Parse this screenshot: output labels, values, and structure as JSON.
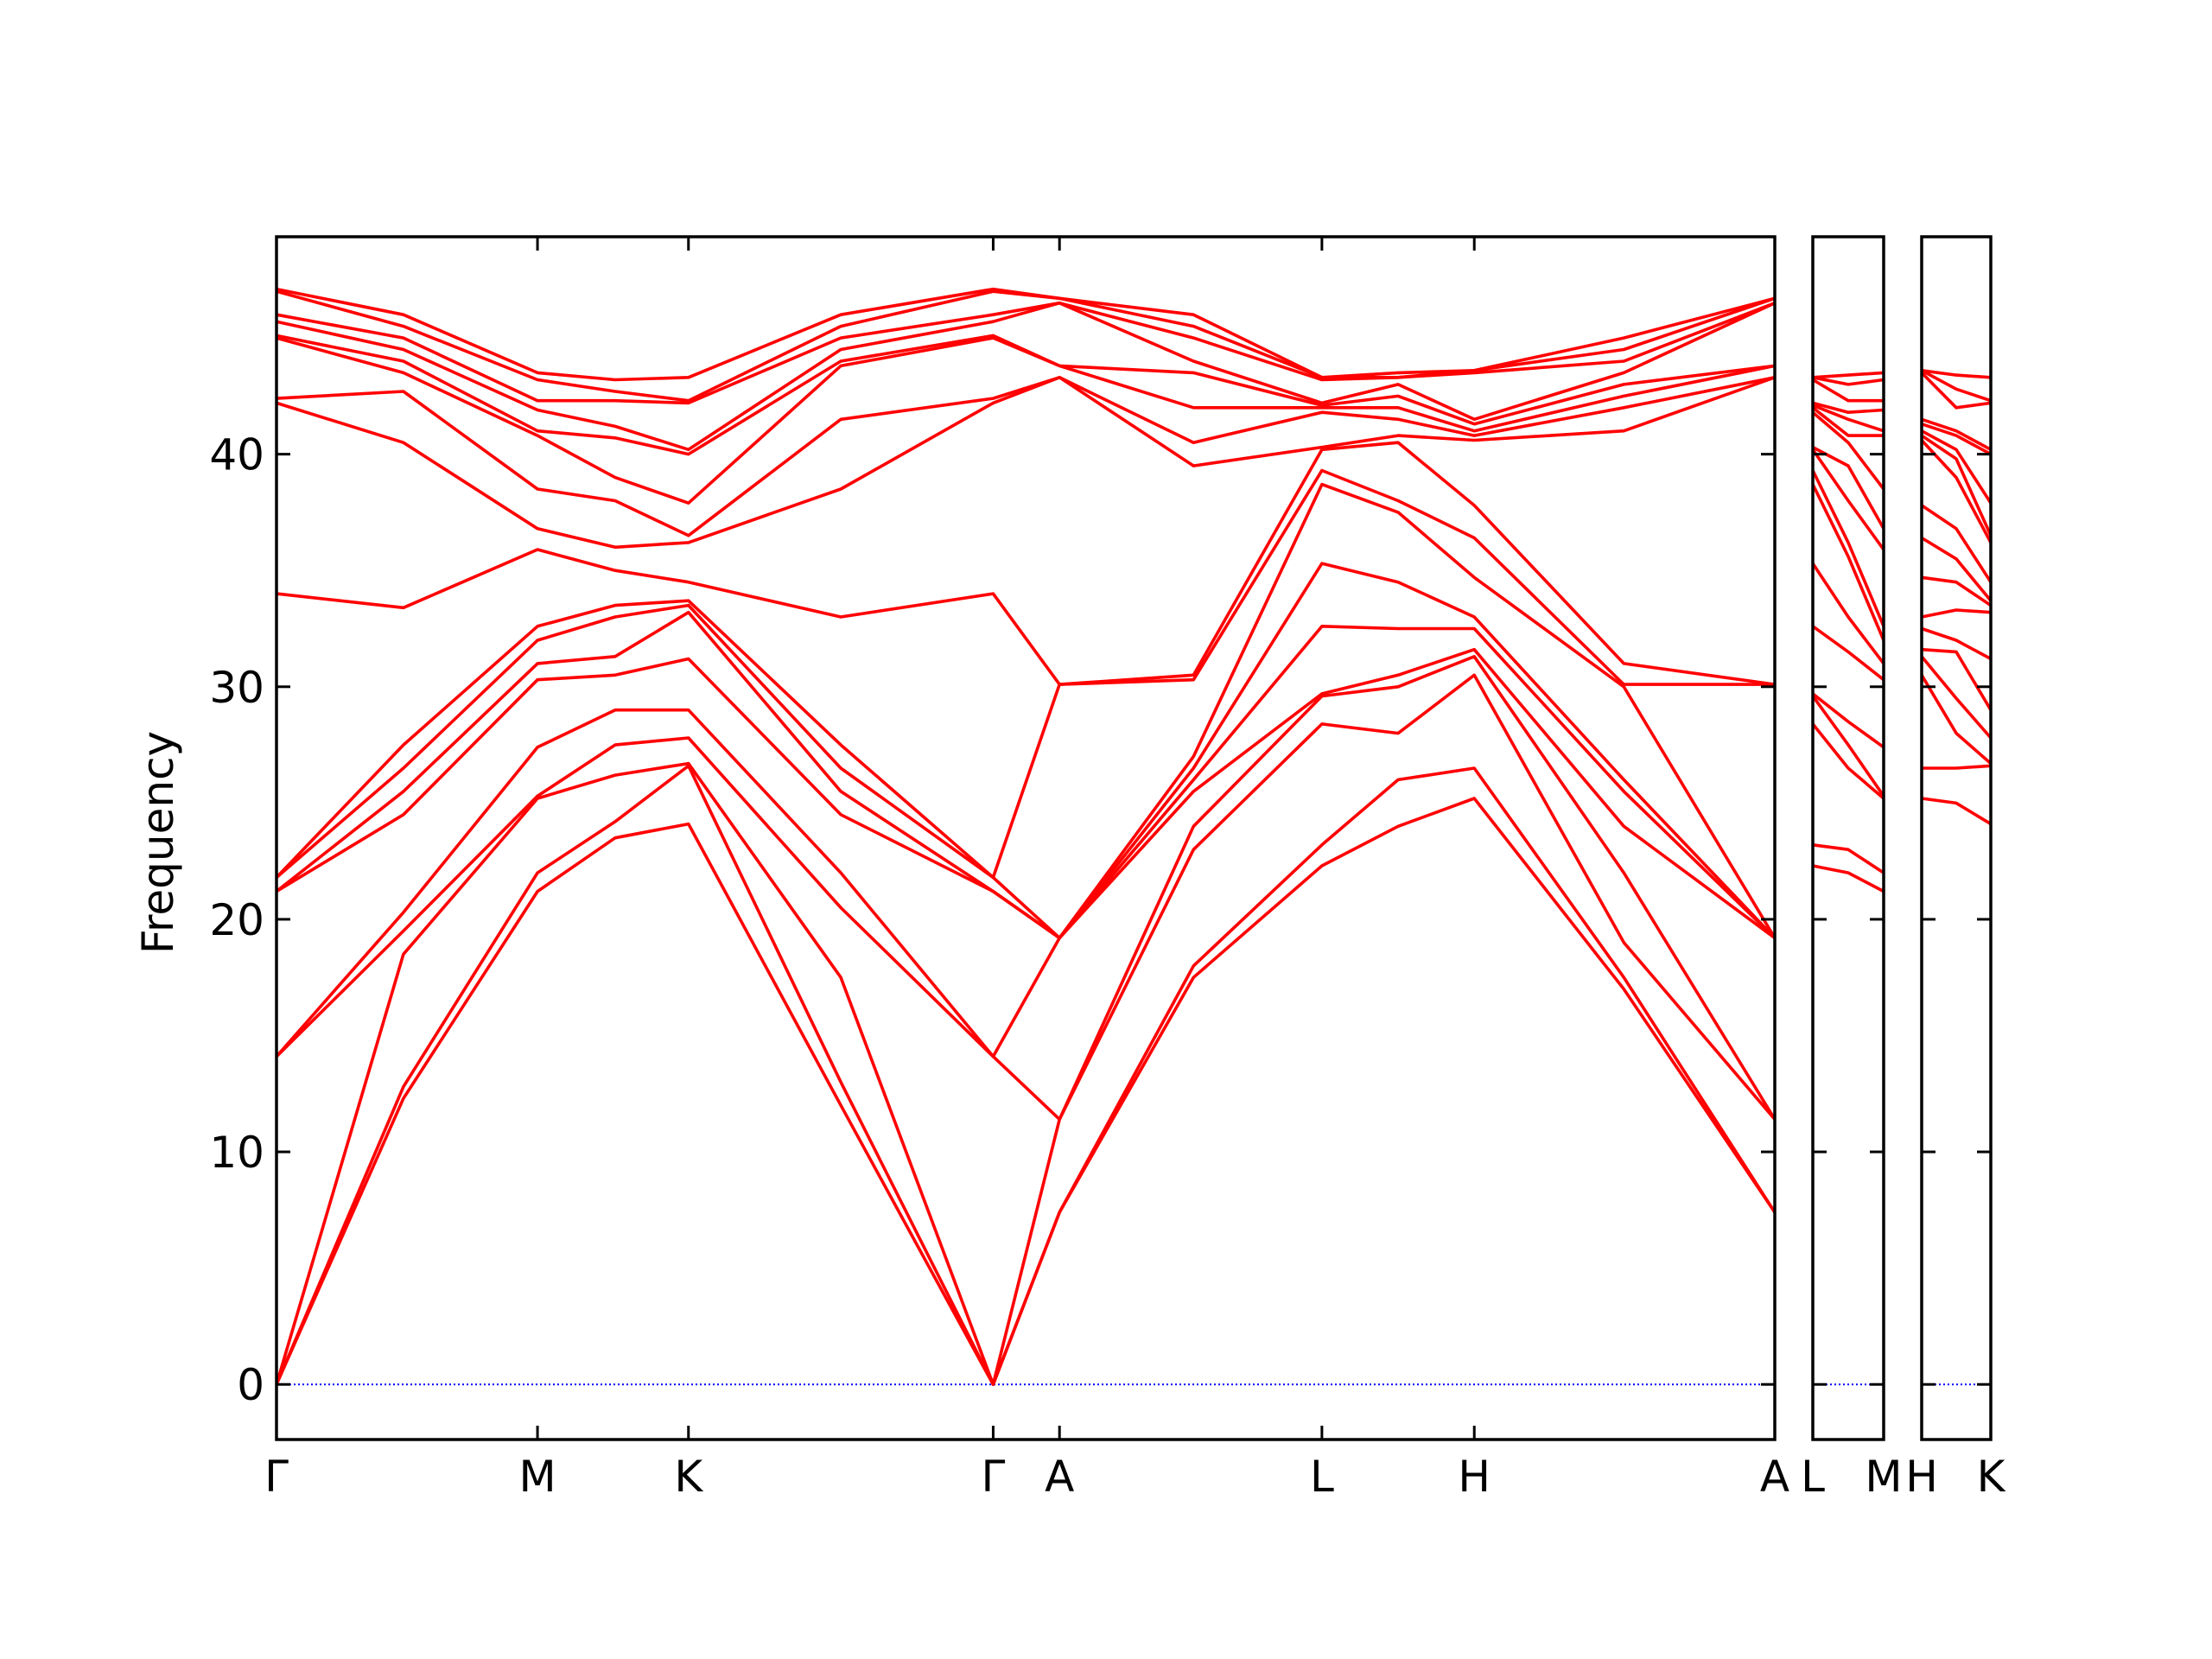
{
  "chart_data": [
    {
      "type": "line",
      "y_label": "Frequency",
      "color": "#ff0000",
      "hline": 0,
      "hline_color": "#0000ff",
      "xlim": [
        0,
        1.062
      ],
      "ylim": [
        -2.37,
        49.35
      ],
      "yticks": [
        0,
        10,
        20,
        30,
        40
      ],
      "xticks": [
        {
          "value": 0,
          "label": "Γ"
        },
        {
          "value": 0.185,
          "label": "M"
        },
        {
          "value": 0.292,
          "label": "K"
        },
        {
          "value": 0.508,
          "label": "Γ"
        },
        {
          "value": 0.555,
          "label": "A"
        },
        {
          "value": 0.741,
          "label": "L"
        },
        {
          "value": 0.849,
          "label": "H"
        },
        {
          "value": 1.062,
          "label": "A"
        }
      ],
      "x": [
        0,
        0.09,
        0.185,
        0.24,
        0.292,
        0.4,
        0.508,
        0.555,
        0.65,
        0.741,
        0.795,
        0.849,
        0.955,
        1.062
      ],
      "series": [
        {
          "values": [
            0,
            12.3,
            21.2,
            23.5,
            24.1,
            12.0,
            0,
            7.4,
            17.5,
            22.3,
            24.0,
            25.2,
            17.0,
            7.4
          ]
        },
        {
          "values": [
            0,
            12.8,
            22.0,
            24.2,
            26.6,
            13.0,
            0,
            7.4,
            18.0,
            23.2,
            26.0,
            26.5,
            17.5,
            7.4
          ]
        },
        {
          "values": [
            0,
            18.5,
            25.2,
            26.2,
            26.7,
            17.5,
            0,
            11.4,
            23.0,
            28.4,
            28.0,
            30.5,
            19.0,
            11.4
          ]
        },
        {
          "values": [
            14.1,
            19.5,
            25.3,
            27.5,
            27.8,
            20.5,
            14.1,
            11.4,
            24.0,
            29.6,
            30.0,
            31.3,
            22.0,
            11.4
          ]
        },
        {
          "values": [
            14.1,
            20.3,
            27.4,
            29.0,
            29.0,
            22.0,
            14.1,
            19.2,
            25.5,
            29.7,
            30.5,
            31.6,
            24.0,
            19.2
          ]
        },
        {
          "values": [
            21.2,
            24.5,
            30.3,
            30.5,
            31.2,
            24.5,
            21.2,
            19.2,
            26.0,
            32.6,
            32.5,
            32.5,
            25.5,
            19.2
          ]
        },
        {
          "values": [
            21.2,
            25.5,
            31.0,
            31.3,
            33.2,
            25.5,
            21.2,
            19.2,
            26.5,
            35.3,
            34.5,
            33.0,
            26.0,
            19.2
          ]
        },
        {
          "values": [
            21.8,
            26.5,
            32.0,
            33.0,
            33.5,
            26.5,
            21.8,
            19.2,
            27.0,
            38.7,
            37.5,
            34.7,
            30.0,
            19.2
          ]
        },
        {
          "values": [
            21.8,
            27.5,
            32.6,
            33.5,
            33.7,
            27.5,
            21.8,
            30.1,
            30.3,
            39.3,
            38.0,
            36.4,
            30.1,
            30.1
          ]
        },
        {
          "values": [
            34.0,
            33.4,
            35.9,
            35.0,
            34.5,
            33.0,
            34.0,
            30.1,
            30.5,
            40.2,
            40.5,
            37.8,
            31.0,
            30.1
          ]
        },
        {
          "values": [
            42.2,
            40.5,
            36.8,
            36.0,
            36.2,
            38.5,
            42.2,
            43.3,
            39.5,
            40.3,
            40.8,
            40.6,
            41.0,
            43.3
          ]
        },
        {
          "values": [
            42.4,
            42.7,
            38.5,
            38.0,
            36.5,
            41.5,
            42.4,
            43.3,
            40.5,
            41.8,
            41.5,
            40.8,
            42.0,
            43.3
          ]
        },
        {
          "values": [
            45.0,
            43.5,
            40.8,
            39.0,
            37.9,
            43.8,
            45.0,
            43.8,
            42.0,
            42.0,
            42.0,
            41.0,
            42.5,
            43.8
          ]
        },
        {
          "values": [
            45.1,
            44.0,
            41.0,
            40.7,
            40.0,
            44.0,
            45.1,
            43.8,
            43.5,
            42.1,
            42.5,
            41.3,
            43.0,
            43.8
          ]
        },
        {
          "values": [
            45.7,
            44.5,
            41.9,
            41.2,
            40.2,
            44.5,
            45.7,
            46.5,
            44.0,
            42.2,
            43.0,
            41.5,
            43.5,
            46.5
          ]
        },
        {
          "values": [
            46.0,
            45.0,
            42.3,
            42.3,
            42.2,
            45.0,
            46.0,
            46.5,
            45.0,
            43.2,
            43.3,
            43.5,
            44.0,
            46.5
          ]
        },
        {
          "values": [
            47.0,
            45.5,
            43.2,
            42.7,
            42.3,
            45.5,
            47.0,
            46.7,
            45.5,
            43.3,
            43.3,
            43.6,
            44.5,
            46.7
          ]
        },
        {
          "values": [
            47.1,
            46.0,
            43.5,
            43.2,
            43.3,
            46.0,
            47.1,
            46.7,
            46.0,
            43.3,
            43.5,
            43.6,
            45.0,
            46.7
          ]
        }
      ]
    },
    {
      "type": "line",
      "color": "#ff0000",
      "hline": 0,
      "hline_color": "#0000ff",
      "xlim": [
        0,
        0.05
      ],
      "ylim": [
        -2.37,
        49.35
      ],
      "yticks": [
        0,
        10,
        20,
        30,
        40
      ],
      "xticks": [
        {
          "value": 0,
          "label": "L"
        },
        {
          "value": 0.05,
          "label": "M"
        }
      ],
      "x": [
        0,
        0.025,
        0.05
      ],
      "series": [
        {
          "values": [
            22.3,
            22.0,
            21.2
          ]
        },
        {
          "values": [
            23.2,
            23.0,
            22.0
          ]
        },
        {
          "values": [
            28.4,
            26.5,
            25.2
          ]
        },
        {
          "values": [
            29.6,
            27.5,
            25.3
          ]
        },
        {
          "values": [
            29.7,
            28.5,
            27.4
          ]
        },
        {
          "values": [
            32.6,
            31.5,
            30.3
          ]
        },
        {
          "values": [
            35.3,
            33.0,
            31.0
          ]
        },
        {
          "values": [
            38.7,
            35.6,
            32.0
          ]
        },
        {
          "values": [
            39.3,
            36.2,
            32.6
          ]
        },
        {
          "values": [
            40.2,
            38.0,
            35.9
          ]
        },
        {
          "values": [
            40.3,
            39.5,
            36.8
          ]
        },
        {
          "values": [
            41.8,
            40.5,
            38.5
          ]
        },
        {
          "values": [
            42.0,
            40.8,
            40.8
          ]
        },
        {
          "values": [
            42.1,
            41.5,
            41.0
          ]
        },
        {
          "values": [
            42.2,
            41.8,
            41.9
          ]
        },
        {
          "values": [
            43.2,
            42.3,
            42.3
          ]
        },
        {
          "values": [
            43.3,
            43.0,
            43.2
          ]
        },
        {
          "values": [
            43.3,
            43.4,
            43.5
          ]
        }
      ]
    },
    {
      "type": "line",
      "color": "#ff0000",
      "hline": 0,
      "hline_color": "#0000ff",
      "xlim": [
        0,
        0.049
      ],
      "ylim": [
        -2.37,
        49.35
      ],
      "yticks": [
        0,
        10,
        20,
        30,
        40
      ],
      "xticks": [
        {
          "value": 0,
          "label": "H"
        },
        {
          "value": 0.049,
          "label": "K"
        }
      ],
      "x": [
        0,
        0.0245,
        0.049
      ],
      "series": [
        {
          "values": [
            25.2,
            25.0,
            24.1
          ]
        },
        {
          "values": [
            26.5,
            26.5,
            26.6
          ]
        },
        {
          "values": [
            30.5,
            28.0,
            26.7
          ]
        },
        {
          "values": [
            31.3,
            29.5,
            27.8
          ]
        },
        {
          "values": [
            31.6,
            31.5,
            29.0
          ]
        },
        {
          "values": [
            32.5,
            32.0,
            31.2
          ]
        },
        {
          "values": [
            33.0,
            33.3,
            33.2
          ]
        },
        {
          "values": [
            34.7,
            34.5,
            33.5
          ]
        },
        {
          "values": [
            36.4,
            35.5,
            33.7
          ]
        },
        {
          "values": [
            37.8,
            36.8,
            34.5
          ]
        },
        {
          "values": [
            40.6,
            39.0,
            36.2
          ]
        },
        {
          "values": [
            40.8,
            39.8,
            36.5
          ]
        },
        {
          "values": [
            41.0,
            40.2,
            37.9
          ]
        },
        {
          "values": [
            41.3,
            40.8,
            40.0
          ]
        },
        {
          "values": [
            41.5,
            41.0,
            40.2
          ]
        },
        {
          "values": [
            43.5,
            42.0,
            42.2
          ]
        },
        {
          "values": [
            43.6,
            42.8,
            42.3
          ]
        },
        {
          "values": [
            43.6,
            43.4,
            43.3
          ]
        }
      ]
    }
  ]
}
